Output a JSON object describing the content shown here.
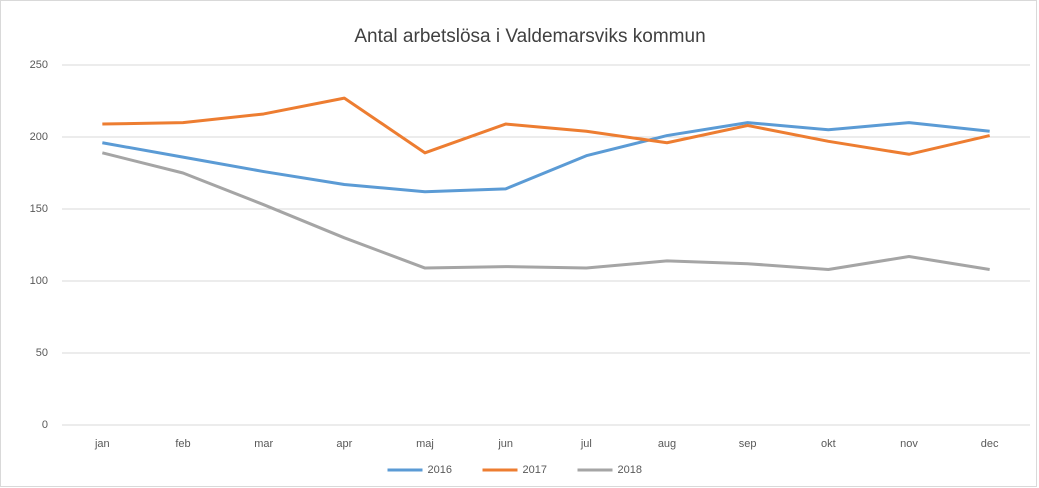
{
  "chart_data": {
    "type": "line",
    "title": "Antal arbetslösa i Valdemarsviks kommun",
    "categories": [
      "jan",
      "feb",
      "mar",
      "apr",
      "maj",
      "jun",
      "jul",
      "aug",
      "sep",
      "okt",
      "nov",
      "dec"
    ],
    "series": [
      {
        "name": "2016",
        "color": "#5b9bd5",
        "values": [
          196,
          186,
          176,
          167,
          162,
          164,
          187,
          201,
          210,
          205,
          210,
          204
        ]
      },
      {
        "name": "2017",
        "color": "#ed7d31",
        "values": [
          209,
          210,
          216,
          227,
          189,
          209,
          204,
          196,
          208,
          197,
          188,
          201
        ]
      },
      {
        "name": "2018",
        "color": "#a5a5a5",
        "values": [
          189,
          175,
          153,
          130,
          109,
          110,
          109,
          114,
          112,
          108,
          117,
          108
        ]
      }
    ],
    "ylim": [
      0,
      250
    ],
    "yticks": [
      0,
      50,
      100,
      150,
      200,
      250
    ],
    "grid": true,
    "legend": "bottom"
  }
}
